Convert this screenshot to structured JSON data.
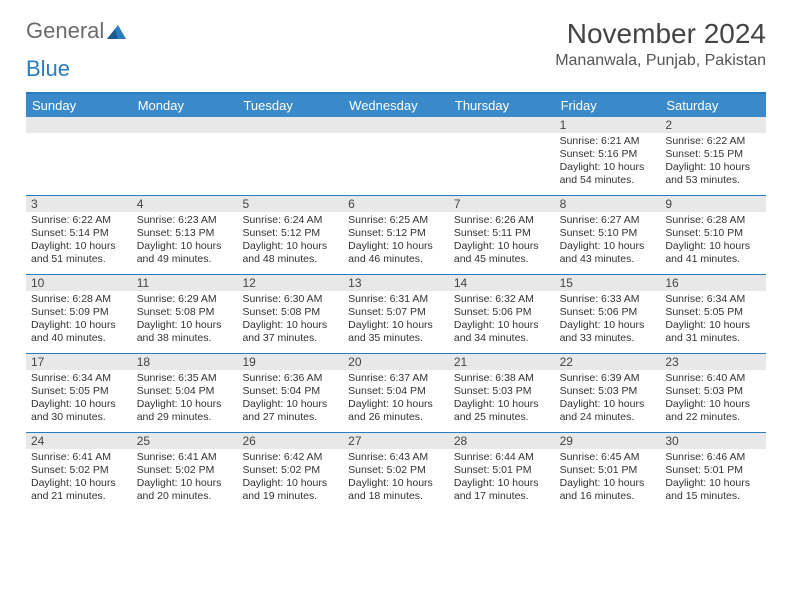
{
  "logo": {
    "text_gray": "General",
    "text_blue": "Blue"
  },
  "title": "November 2024",
  "location": "Mananwala, Punjab, Pakistan",
  "colors": {
    "header_bg": "#3a8ac9",
    "border": "#2b7bbf",
    "daynum_bg": "#e8e8e8",
    "text_gray": "#6b6b6b",
    "text_blue": "#2b7bbf"
  },
  "day_headers": [
    "Sunday",
    "Monday",
    "Tuesday",
    "Wednesday",
    "Thursday",
    "Friday",
    "Saturday"
  ],
  "weeks": [
    [
      {
        "day": "",
        "sunrise": "",
        "sunset": "",
        "daylight": ""
      },
      {
        "day": "",
        "sunrise": "",
        "sunset": "",
        "daylight": ""
      },
      {
        "day": "",
        "sunrise": "",
        "sunset": "",
        "daylight": ""
      },
      {
        "day": "",
        "sunrise": "",
        "sunset": "",
        "daylight": ""
      },
      {
        "day": "",
        "sunrise": "",
        "sunset": "",
        "daylight": ""
      },
      {
        "day": "1",
        "sunrise": "Sunrise: 6:21 AM",
        "sunset": "Sunset: 5:16 PM",
        "daylight": "Daylight: 10 hours and 54 minutes."
      },
      {
        "day": "2",
        "sunrise": "Sunrise: 6:22 AM",
        "sunset": "Sunset: 5:15 PM",
        "daylight": "Daylight: 10 hours and 53 minutes."
      }
    ],
    [
      {
        "day": "3",
        "sunrise": "Sunrise: 6:22 AM",
        "sunset": "Sunset: 5:14 PM",
        "daylight": "Daylight: 10 hours and 51 minutes."
      },
      {
        "day": "4",
        "sunrise": "Sunrise: 6:23 AM",
        "sunset": "Sunset: 5:13 PM",
        "daylight": "Daylight: 10 hours and 49 minutes."
      },
      {
        "day": "5",
        "sunrise": "Sunrise: 6:24 AM",
        "sunset": "Sunset: 5:12 PM",
        "daylight": "Daylight: 10 hours and 48 minutes."
      },
      {
        "day": "6",
        "sunrise": "Sunrise: 6:25 AM",
        "sunset": "Sunset: 5:12 PM",
        "daylight": "Daylight: 10 hours and 46 minutes."
      },
      {
        "day": "7",
        "sunrise": "Sunrise: 6:26 AM",
        "sunset": "Sunset: 5:11 PM",
        "daylight": "Daylight: 10 hours and 45 minutes."
      },
      {
        "day": "8",
        "sunrise": "Sunrise: 6:27 AM",
        "sunset": "Sunset: 5:10 PM",
        "daylight": "Daylight: 10 hours and 43 minutes."
      },
      {
        "day": "9",
        "sunrise": "Sunrise: 6:28 AM",
        "sunset": "Sunset: 5:10 PM",
        "daylight": "Daylight: 10 hours and 41 minutes."
      }
    ],
    [
      {
        "day": "10",
        "sunrise": "Sunrise: 6:28 AM",
        "sunset": "Sunset: 5:09 PM",
        "daylight": "Daylight: 10 hours and 40 minutes."
      },
      {
        "day": "11",
        "sunrise": "Sunrise: 6:29 AM",
        "sunset": "Sunset: 5:08 PM",
        "daylight": "Daylight: 10 hours and 38 minutes."
      },
      {
        "day": "12",
        "sunrise": "Sunrise: 6:30 AM",
        "sunset": "Sunset: 5:08 PM",
        "daylight": "Daylight: 10 hours and 37 minutes."
      },
      {
        "day": "13",
        "sunrise": "Sunrise: 6:31 AM",
        "sunset": "Sunset: 5:07 PM",
        "daylight": "Daylight: 10 hours and 35 minutes."
      },
      {
        "day": "14",
        "sunrise": "Sunrise: 6:32 AM",
        "sunset": "Sunset: 5:06 PM",
        "daylight": "Daylight: 10 hours and 34 minutes."
      },
      {
        "day": "15",
        "sunrise": "Sunrise: 6:33 AM",
        "sunset": "Sunset: 5:06 PM",
        "daylight": "Daylight: 10 hours and 33 minutes."
      },
      {
        "day": "16",
        "sunrise": "Sunrise: 6:34 AM",
        "sunset": "Sunset: 5:05 PM",
        "daylight": "Daylight: 10 hours and 31 minutes."
      }
    ],
    [
      {
        "day": "17",
        "sunrise": "Sunrise: 6:34 AM",
        "sunset": "Sunset: 5:05 PM",
        "daylight": "Daylight: 10 hours and 30 minutes."
      },
      {
        "day": "18",
        "sunrise": "Sunrise: 6:35 AM",
        "sunset": "Sunset: 5:04 PM",
        "daylight": "Daylight: 10 hours and 29 minutes."
      },
      {
        "day": "19",
        "sunrise": "Sunrise: 6:36 AM",
        "sunset": "Sunset: 5:04 PM",
        "daylight": "Daylight: 10 hours and 27 minutes."
      },
      {
        "day": "20",
        "sunrise": "Sunrise: 6:37 AM",
        "sunset": "Sunset: 5:04 PM",
        "daylight": "Daylight: 10 hours and 26 minutes."
      },
      {
        "day": "21",
        "sunrise": "Sunrise: 6:38 AM",
        "sunset": "Sunset: 5:03 PM",
        "daylight": "Daylight: 10 hours and 25 minutes."
      },
      {
        "day": "22",
        "sunrise": "Sunrise: 6:39 AM",
        "sunset": "Sunset: 5:03 PM",
        "daylight": "Daylight: 10 hours and 24 minutes."
      },
      {
        "day": "23",
        "sunrise": "Sunrise: 6:40 AM",
        "sunset": "Sunset: 5:03 PM",
        "daylight": "Daylight: 10 hours and 22 minutes."
      }
    ],
    [
      {
        "day": "24",
        "sunrise": "Sunrise: 6:41 AM",
        "sunset": "Sunset: 5:02 PM",
        "daylight": "Daylight: 10 hours and 21 minutes."
      },
      {
        "day": "25",
        "sunrise": "Sunrise: 6:41 AM",
        "sunset": "Sunset: 5:02 PM",
        "daylight": "Daylight: 10 hours and 20 minutes."
      },
      {
        "day": "26",
        "sunrise": "Sunrise: 6:42 AM",
        "sunset": "Sunset: 5:02 PM",
        "daylight": "Daylight: 10 hours and 19 minutes."
      },
      {
        "day": "27",
        "sunrise": "Sunrise: 6:43 AM",
        "sunset": "Sunset: 5:02 PM",
        "daylight": "Daylight: 10 hours and 18 minutes."
      },
      {
        "day": "28",
        "sunrise": "Sunrise: 6:44 AM",
        "sunset": "Sunset: 5:01 PM",
        "daylight": "Daylight: 10 hours and 17 minutes."
      },
      {
        "day": "29",
        "sunrise": "Sunrise: 6:45 AM",
        "sunset": "Sunset: 5:01 PM",
        "daylight": "Daylight: 10 hours and 16 minutes."
      },
      {
        "day": "30",
        "sunrise": "Sunrise: 6:46 AM",
        "sunset": "Sunset: 5:01 PM",
        "daylight": "Daylight: 10 hours and 15 minutes."
      }
    ]
  ]
}
